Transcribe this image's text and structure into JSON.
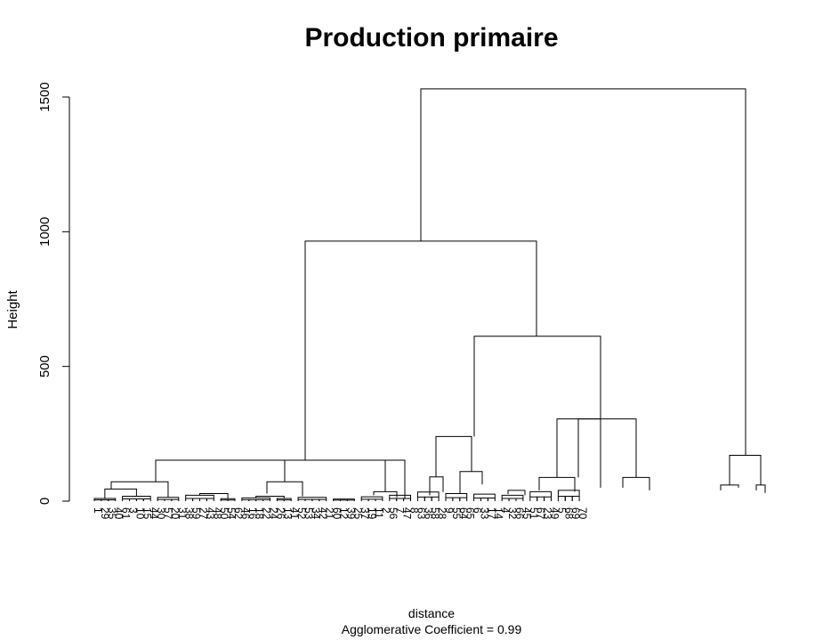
{
  "chart_data": {
    "type": "dendrogram",
    "title": "Production primaire",
    "ylabel": "Height",
    "xlabel": "distance",
    "subtitle": "Agglomerative Coefficient =  0.99",
    "ylim": [
      0,
      1560
    ],
    "yticks": [
      0,
      500,
      1000,
      1500
    ],
    "n_leaves": 70,
    "merges": [
      {
        "name": "root",
        "height": 1530
      },
      {
        "name": "main-cluster",
        "height": 965
      },
      {
        "name": "right-subcluster",
        "height": 612
      },
      {
        "name": "left-subcluster",
        "height": 152
      },
      {
        "name": "outlier-group",
        "height": 170
      },
      {
        "name": "group-c",
        "height": 305
      },
      {
        "name": "group-b",
        "height": 240
      }
    ]
  }
}
